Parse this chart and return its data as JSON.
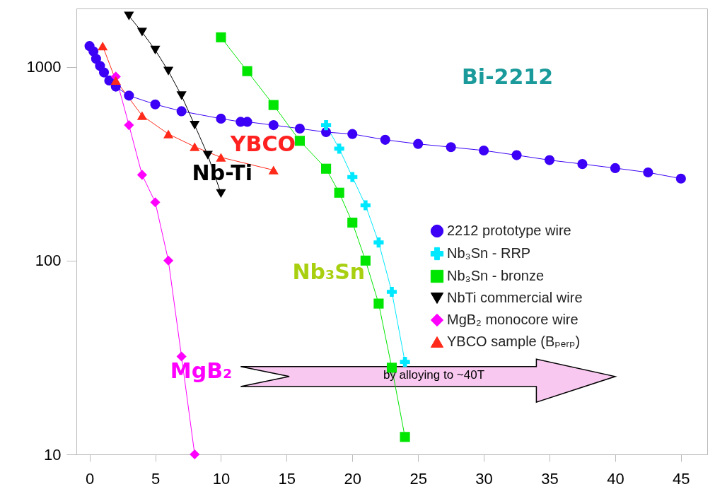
{
  "chart_data": {
    "type": "line",
    "xlim": [
      -1,
      47
    ],
    "xticks": [
      0,
      5,
      10,
      15,
      20,
      25,
      30,
      35,
      40,
      45
    ],
    "ylim": [
      10,
      2000
    ],
    "yticks": [
      10,
      100,
      1000
    ],
    "log": "y",
    "legend": "right",
    "line_style": "solid",
    "annotations": [
      "Bi-2212",
      "YBCO",
      "Nb-Ti",
      "Nb₃Sn",
      "MgB₂",
      "by alloying to ~40T"
    ],
    "series": [
      {
        "name": "2212 prototype wire",
        "color": "#3b00f5",
        "marker": "circle",
        "x": [
          0,
          0.3,
          0.5,
          0.8,
          1.1,
          1.5,
          2,
          3,
          5,
          7,
          10,
          11.5,
          12,
          14,
          16,
          18,
          20,
          22.5,
          25,
          27.5,
          30,
          32.5,
          35,
          37.5,
          40,
          42.5,
          45
        ],
        "values": [
          1280,
          1200,
          1100,
          1010,
          935,
          850,
          790,
          710,
          640,
          590,
          540,
          520,
          520,
          500,
          480,
          460,
          450,
          420,
          400,
          385,
          370,
          350,
          330,
          315,
          300,
          285,
          265
        ]
      },
      {
        "name": "Nb₃Sn - RRP",
        "color": "#00e8ff",
        "marker": "cross",
        "x": [
          18,
          19,
          20,
          21,
          22,
          23,
          24
        ],
        "values": [
          500,
          378,
          270,
          193,
          124,
          69,
          30
        ]
      },
      {
        "name": "Nb₃Sn - bronze",
        "color": "#00e600",
        "marker": "square",
        "x": [
          10,
          12,
          14,
          16,
          18,
          19,
          20,
          21,
          22,
          23,
          24
        ],
        "values": [
          1420,
          950,
          635,
          415,
          298,
          224,
          157,
          100,
          60,
          28,
          12.3
        ]
      },
      {
        "name": "NbTi commercial wire",
        "color": "#000000",
        "marker": "triangle-down",
        "x": [
          3,
          4,
          5,
          6,
          7,
          8,
          9,
          10
        ],
        "values": [
          1830,
          1510,
          1220,
          950,
          710,
          500,
          350,
          222
        ]
      },
      {
        "name": "MgB₂ monocore wire",
        "color": "#ff00ff",
        "marker": "diamond",
        "x": [
          2,
          3,
          4,
          5,
          6,
          7,
          8
        ],
        "values": [
          890,
          500,
          277,
          200,
          100,
          32,
          10
        ]
      },
      {
        "name": "YBCO sample (Bₚₑᵣₚ)",
        "color": "#ff2a1a",
        "marker": "triangle",
        "x": [
          1,
          2,
          4,
          6,
          8,
          10,
          14
        ],
        "values": [
          1280,
          850,
          560,
          450,
          387,
          341,
          293
        ]
      }
    ]
  }
}
